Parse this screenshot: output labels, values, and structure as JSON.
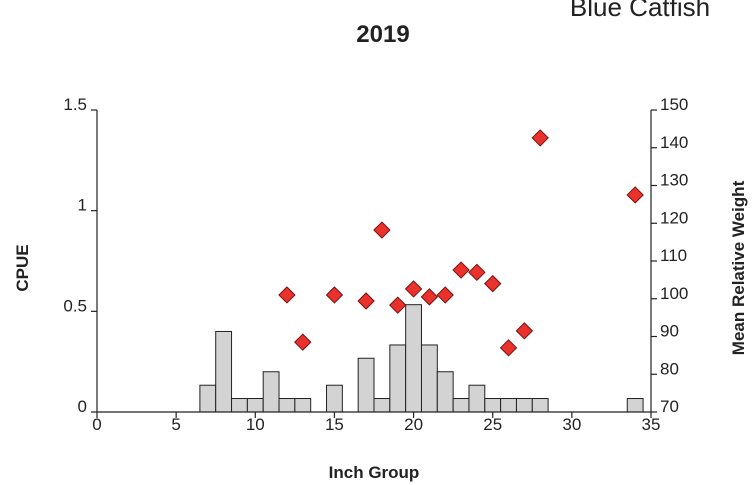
{
  "chart_data": {
    "type": "histogram",
    "title": "2019",
    "subtitle": "Blue Catfish",
    "x_label": "Inch Group",
    "y_label": "CPUE",
    "y2_label": "Mean Relative Weight",
    "bins": [
      6.5,
      7.5,
      8.5,
      9.5,
      10.5,
      11.5,
      12.5,
      13.5,
      14.5,
      15.5,
      16.5,
      17.5,
      18.5,
      19.5,
      20.5,
      21.5,
      22.5,
      23.5,
      24.5,
      25.5,
      26.5,
      27.5,
      28.5,
      29.5,
      30.5,
      31.5,
      32.5,
      33.5,
      34.5
    ],
    "values": [
      0.133,
      0.4,
      0.067,
      0.067,
      0.2,
      0.067,
      0.067,
      0,
      0.133,
      0,
      0.267,
      0.067,
      0.333,
      0.533,
      0.333,
      0.2,
      0.067,
      0.133,
      0.067,
      0.067,
      0.067,
      0.067,
      0,
      0,
      0,
      0,
      0,
      0.067
    ],
    "color": "#d3d3d3",
    "overlay": {
      "type": "scatter",
      "axis": "y2",
      "color": "#e8322b",
      "x": [
        12,
        13,
        15,
        17,
        18,
        19,
        20,
        21,
        22,
        23,
        24,
        25,
        26,
        27,
        28,
        34
      ],
      "values": [
        101,
        88.5,
        101,
        99.4,
        118.2,
        98.3,
        102.6,
        100.5,
        101,
        107.6,
        107,
        104,
        87,
        91.5,
        142.6,
        127.5
      ]
    },
    "xlim": [
      0,
      35
    ],
    "xticks": [
      0,
      5,
      10,
      15,
      20,
      25,
      30,
      35
    ],
    "ylim": [
      0,
      1.5
    ],
    "yticks": [
      0,
      0.5,
      1,
      1.5
    ],
    "y2lim": [
      70,
      150
    ],
    "y2ticks": [
      70,
      80,
      90,
      100,
      110,
      120,
      130,
      140,
      150
    ]
  }
}
